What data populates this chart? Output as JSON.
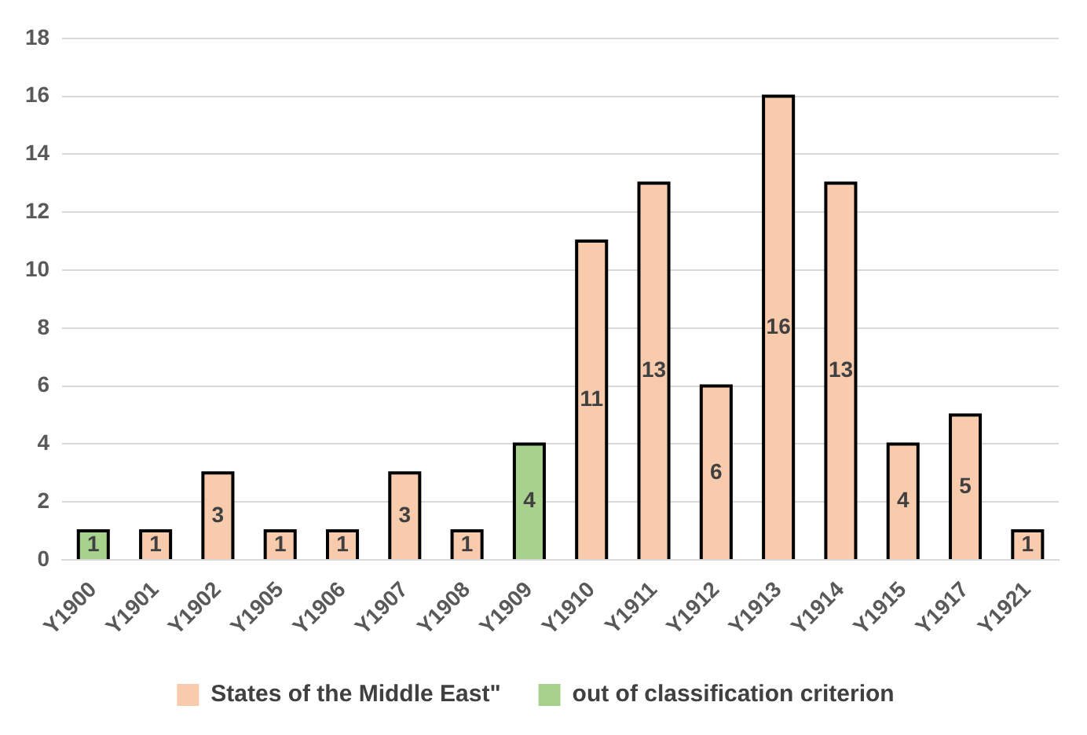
{
  "chart_data": {
    "type": "bar",
    "categories": [
      "Y1900",
      "Y1901",
      "Y1902",
      "Y1905",
      "Y1906",
      "Y1907",
      "Y1908",
      "Y1909",
      "Y1910",
      "Y1911",
      "Y1912",
      "Y1913",
      "Y1914",
      "Y1915",
      "Y1917",
      "Y1921"
    ],
    "series": [
      {
        "name": "States of the Middle East\"",
        "color": "#f8cbad",
        "values": [
          null,
          1,
          3,
          1,
          1,
          3,
          1,
          null,
          11,
          13,
          6,
          16,
          13,
          4,
          5,
          1
        ]
      },
      {
        "name": "out of classification criterion",
        "color": "#a9d18e",
        "values": [
          1,
          null,
          null,
          null,
          null,
          null,
          null,
          4,
          null,
          null,
          null,
          null,
          null,
          null,
          null,
          null
        ]
      }
    ],
    "ylim": [
      0,
      18
    ],
    "yticks": [
      0,
      2,
      4,
      6,
      8,
      10,
      12,
      14,
      16,
      18
    ],
    "grid": "y",
    "legend": "bottom",
    "data_labels": true
  }
}
